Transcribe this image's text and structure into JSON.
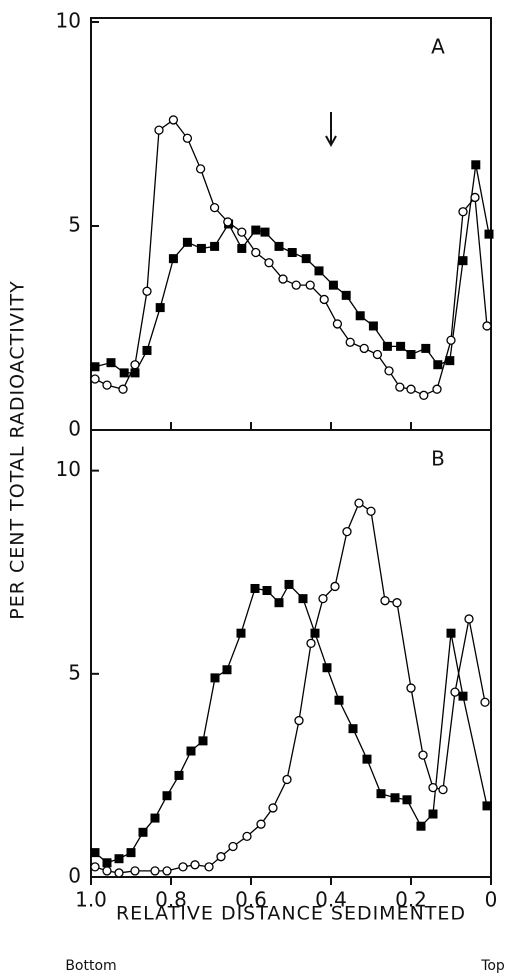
{
  "chart_data": [
    {
      "type": "line",
      "label": "A",
      "ylabel": "PER CENT TOTAL RADIOACTIVITY",
      "xlim": [
        1.0,
        0
      ],
      "ylim": [
        0,
        10
      ],
      "yticks": [
        0,
        5,
        10
      ],
      "arrow_x": 0.4,
      "series": [
        {
          "marker": "filled-square",
          "color": "#000000",
          "x": [
            0.99,
            0.95,
            0.917,
            0.89,
            0.86,
            0.827,
            0.794,
            0.759,
            0.724,
            0.691,
            0.656,
            0.623,
            0.588,
            0.565,
            0.53,
            0.497,
            0.462,
            0.43,
            0.394,
            0.362,
            0.327,
            0.294,
            0.259,
            0.226,
            0.2,
            0.163,
            0.133,
            0.103,
            0.07,
            0.038,
            0.005
          ],
          "values": [
            1.55,
            1.65,
            1.4,
            1.4,
            1.95,
            3.0,
            4.2,
            4.6,
            4.45,
            4.5,
            5.05,
            4.45,
            4.9,
            4.85,
            4.5,
            4.35,
            4.2,
            3.9,
            3.55,
            3.3,
            2.8,
            2.55,
            2.05,
            2.05,
            1.85,
            2.0,
            1.6,
            1.7,
            4.15,
            6.5,
            4.8
          ]
        },
        {
          "marker": "open-circle",
          "color": "#000000",
          "x": [
            0.99,
            0.96,
            0.92,
            0.89,
            0.86,
            0.83,
            0.794,
            0.759,
            0.726,
            0.691,
            0.658,
            0.623,
            0.588,
            0.555,
            0.52,
            0.487,
            0.452,
            0.417,
            0.384,
            0.352,
            0.317,
            0.284,
            0.255,
            0.228,
            0.2,
            0.168,
            0.135,
            0.1,
            0.07,
            0.04,
            0.01
          ],
          "values": [
            1.25,
            1.1,
            1.0,
            1.6,
            3.4,
            7.35,
            7.6,
            7.15,
            6.4,
            5.45,
            5.1,
            4.85,
            4.35,
            4.1,
            3.7,
            3.55,
            3.55,
            3.2,
            2.6,
            2.15,
            2.0,
            1.85,
            1.45,
            1.05,
            1.0,
            0.85,
            1.0,
            2.2,
            5.35,
            5.7,
            2.55
          ]
        }
      ]
    },
    {
      "type": "line",
      "label": "B",
      "xlabel": "RELATIVE DISTANCE SEDIMENTED",
      "annotations": [
        "Bottom",
        "Top"
      ],
      "xlim": [
        1.0,
        0
      ],
      "ylim": [
        0,
        11
      ],
      "yticks": [
        0,
        5,
        10
      ],
      "xticks": [
        {
          "value": 1.0,
          "label": "1.0"
        },
        0.8,
        0.6,
        0.4,
        0.2,
        0
      ],
      "series": [
        {
          "marker": "filled-square",
          "color": "#000000",
          "x": [
            0.99,
            0.96,
            0.93,
            0.9,
            0.87,
            0.84,
            0.81,
            0.78,
            0.75,
            0.72,
            0.69,
            0.66,
            0.625,
            0.59,
            0.56,
            0.53,
            0.505,
            0.47,
            0.44,
            0.41,
            0.38,
            0.345,
            0.31,
            0.275,
            0.24,
            0.21,
            0.175,
            0.145,
            0.1,
            0.07,
            0.01
          ],
          "values": [
            0.6,
            0.35,
            0.45,
            0.6,
            1.1,
            1.45,
            2.0,
            2.5,
            3.1,
            3.35,
            4.9,
            5.1,
            6.0,
            7.1,
            7.05,
            6.75,
            7.2,
            6.85,
            6.0,
            5.15,
            4.35,
            3.65,
            2.9,
            2.05,
            1.95,
            1.9,
            1.25,
            1.55,
            6.0,
            4.45,
            1.75
          ]
        },
        {
          "marker": "open-circle",
          "color": "#000000",
          "x": [
            0.99,
            0.96,
            0.93,
            0.89,
            0.84,
            0.81,
            0.77,
            0.74,
            0.705,
            0.675,
            0.645,
            0.61,
            0.575,
            0.545,
            0.51,
            0.48,
            0.45,
            0.42,
            0.39,
            0.36,
            0.33,
            0.3,
            0.265,
            0.235,
            0.2,
            0.17,
            0.145,
            0.12,
            0.09,
            0.055,
            0.015
          ],
          "values": [
            0.25,
            0.15,
            0.1,
            0.15,
            0.15,
            0.15,
            0.25,
            0.3,
            0.25,
            0.5,
            0.75,
            1.0,
            1.3,
            1.7,
            2.4,
            3.85,
            5.75,
            6.85,
            7.15,
            8.5,
            9.2,
            9.0,
            6.8,
            6.75,
            4.65,
            3.0,
            2.2,
            2.15,
            4.55,
            6.35,
            4.3
          ]
        }
      ]
    }
  ]
}
